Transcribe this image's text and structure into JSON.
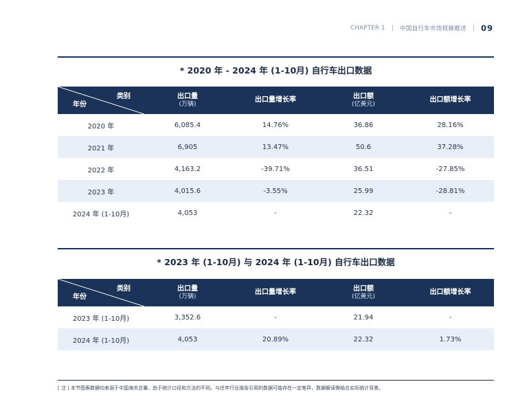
{
  "header": {
    "chapter": "CHAPTER 1",
    "divider": "|",
    "section": "中国自行车市场规模概述",
    "page_number": "09"
  },
  "table1": {
    "title": "* 2020 年 - 2024 年 (1-10月) 自行车出口数据",
    "header": {
      "category_label": "类别",
      "year_label": "年份",
      "col_volume": "出口量",
      "col_volume_unit": "(万辆)",
      "col_volume_growth": "出口量增长率",
      "col_value": "出口额",
      "col_value_unit": "(亿美元)",
      "col_value_growth": "出口额增长率"
    },
    "rows": [
      {
        "year": "2020 年",
        "volume": "6,085.4",
        "volume_growth": "14.76%",
        "value": "36.86",
        "value_growth": "28.16%"
      },
      {
        "year": "2021 年",
        "volume": "6,905",
        "volume_growth": "13.47%",
        "value": "50.6",
        "value_growth": "37.28%"
      },
      {
        "year": "2022 年",
        "volume": "4,163.2",
        "volume_growth": "-39.71%",
        "value": "36.51",
        "value_growth": "-27.85%"
      },
      {
        "year": "2023 年",
        "volume": "4,015.6",
        "volume_growth": "-3.55%",
        "value": "25.99",
        "value_growth": "-28.81%"
      },
      {
        "year": "2024 年 (1-10月)",
        "volume": "4,053",
        "volume_growth": "-",
        "value": "22.32",
        "value_growth": "-"
      }
    ]
  },
  "table2": {
    "title": "* 2023 年 (1-10月) 与 2024 年 (1-10月) 自行车出口数据",
    "header": {
      "category_label": "类别",
      "year_label": "年份",
      "col_volume": "出口量",
      "col_volume_unit": "(万辆)",
      "col_volume_growth": "出口量增长率",
      "col_value": "出口额",
      "col_value_unit": "(亿美元)",
      "col_value_growth": "出口额增长率"
    },
    "rows": [
      {
        "year": "2023 年 (1-10月)",
        "volume": "3,352.6",
        "volume_growth": "-",
        "value": "21.94",
        "value_growth": "-"
      },
      {
        "year": "2024 年 (1-10月)",
        "volume": "4,053",
        "volume_growth": "20.89%",
        "value": "22.32",
        "value_growth": "1.73%"
      }
    ]
  },
  "footnote": "[ 注 ] 本节图表数据均来源于中国海关总署。由于统计口径和方法的不同，与往年行业报告引用的数据可能存在一定差异，数据解读需结合实际统计背景。"
}
